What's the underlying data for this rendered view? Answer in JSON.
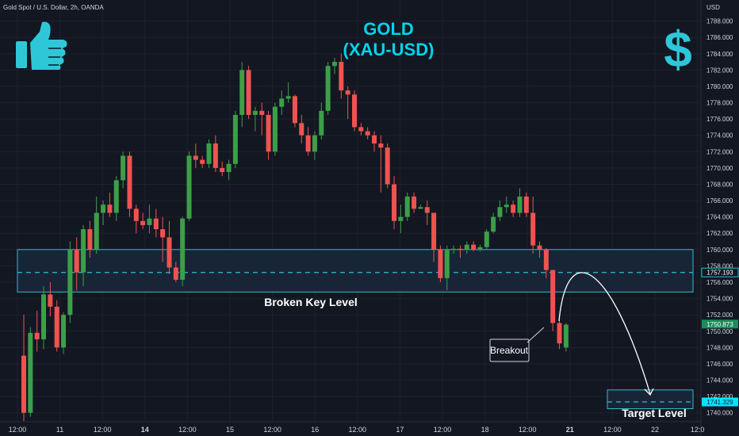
{
  "symbol_info": "Gold Spot / U.S. Dollar, 2h, OANDA",
  "currency": "USD",
  "chart_data": {
    "type": "candlestick",
    "title": "GOLD",
    "subtitle": "(XAU-USD)",
    "ylim": [
      1739,
      1790
    ],
    "y_ticks": [
      1740,
      1742,
      1744,
      1746,
      1748,
      1750,
      1752,
      1754,
      1756,
      1758,
      1760,
      1762,
      1764,
      1766,
      1768,
      1770,
      1772,
      1774,
      1776,
      1778,
      1780,
      1782,
      1784,
      1786,
      1788
    ],
    "y_tick_labels": [
      "1740.000",
      "1742.000",
      "1744.000",
      "1746.000",
      "1748.000",
      "1750.000",
      "1752.000",
      "1754.000",
      "1756.000",
      "1758.000",
      "1760.000",
      "1762.000",
      "1764.000",
      "1766.000",
      "1768.000",
      "1770.000",
      "1772.000",
      "1774.000",
      "1776.000",
      "1778.000",
      "1780.000",
      "1782.000",
      "1784.000",
      "1786.000",
      "1788.000"
    ],
    "x_ticks": [
      "12:00",
      "11",
      "12:00",
      "14",
      "12:00",
      "15",
      "12:00",
      "16",
      "12:00",
      "17",
      "12:00",
      "18",
      "12:00",
      "21",
      "12:00",
      "22",
      "12:0"
    ],
    "x_ticks_bold": [
      false,
      false,
      false,
      true,
      false,
      false,
      false,
      false,
      false,
      false,
      false,
      false,
      false,
      true,
      false,
      false,
      false
    ],
    "candles": [
      [
        1747.0,
        1752.0,
        1739.0,
        1740.0
      ],
      [
        1740.0,
        1750.5,
        1739.5,
        1749.8
      ],
      [
        1749.8,
        1752.5,
        1747.5,
        1749.0
      ],
      [
        1749.0,
        1755.5,
        1747.8,
        1754.5
      ],
      [
        1754.5,
        1756.0,
        1751.8,
        1753.0
      ],
      [
        1753.0,
        1753.8,
        1747.5,
        1748.0
      ],
      [
        1748.0,
        1752.3,
        1747.2,
        1752.0
      ],
      [
        1752.0,
        1761.0,
        1751.0,
        1760.0
      ],
      [
        1760.0,
        1761.5,
        1755.0,
        1757.2
      ],
      [
        1757.2,
        1763.0,
        1755.5,
        1762.5
      ],
      [
        1762.5,
        1763.5,
        1759.0,
        1760.0
      ],
      [
        1760.0,
        1766.5,
        1759.5,
        1764.5
      ],
      [
        1764.5,
        1766.0,
        1763.0,
        1765.5
      ],
      [
        1765.5,
        1767.0,
        1764.0,
        1764.5
      ],
      [
        1764.5,
        1769.0,
        1763.5,
        1768.5
      ],
      [
        1768.5,
        1772.0,
        1767.5,
        1771.5
      ],
      [
        1771.5,
        1772.0,
        1764.0,
        1765.0
      ],
      [
        1765.0,
        1765.5,
        1762.0,
        1763.5
      ],
      [
        1763.5,
        1764.5,
        1762.5,
        1763.0
      ],
      [
        1763.0,
        1765.5,
        1762.0,
        1763.8
      ],
      [
        1763.8,
        1765.0,
        1761.5,
        1762.5
      ],
      [
        1762.5,
        1764.0,
        1758.5,
        1761.5
      ],
      [
        1761.5,
        1763.5,
        1757.0,
        1757.8
      ],
      [
        1757.8,
        1758.5,
        1756.0,
        1756.3
      ],
      [
        1756.3,
        1764.0,
        1755.5,
        1763.8
      ],
      [
        1763.8,
        1772.0,
        1763.5,
        1771.5
      ],
      [
        1771.5,
        1773.0,
        1770.0,
        1771.0
      ],
      [
        1771.0,
        1771.5,
        1770.0,
        1770.5
      ],
      [
        1770.5,
        1773.5,
        1770.0,
        1773.0
      ],
      [
        1773.0,
        1774.0,
        1769.5,
        1770.0
      ],
      [
        1770.0,
        1770.8,
        1769.0,
        1769.5
      ],
      [
        1769.5,
        1771.0,
        1768.5,
        1770.5
      ],
      [
        1770.5,
        1777.0,
        1770.0,
        1776.5
      ],
      [
        1776.5,
        1783.0,
        1775.0,
        1782.0
      ],
      [
        1782.0,
        1782.5,
        1776.0,
        1776.5
      ],
      [
        1776.5,
        1777.5,
        1774.5,
        1777.0
      ],
      [
        1777.0,
        1778.0,
        1774.0,
        1776.5
      ],
      [
        1776.5,
        1777.0,
        1771.0,
        1772.0
      ],
      [
        1772.0,
        1778.0,
        1771.5,
        1777.5
      ],
      [
        1777.5,
        1779.5,
        1776.5,
        1778.5
      ],
      [
        1778.5,
        1780.5,
        1778.0,
        1778.8
      ],
      [
        1778.8,
        1779.0,
        1775.0,
        1775.5
      ],
      [
        1775.5,
        1776.5,
        1773.0,
        1774.0
      ],
      [
        1774.0,
        1775.0,
        1771.5,
        1772.0
      ],
      [
        1772.0,
        1774.5,
        1771.0,
        1774.0
      ],
      [
        1774.0,
        1778.0,
        1773.5,
        1777.0
      ],
      [
        1777.0,
        1783.0,
        1776.5,
        1782.5
      ],
      [
        1782.5,
        1783.5,
        1781.5,
        1783.0
      ],
      [
        1783.0,
        1784.0,
        1778.5,
        1779.5
      ],
      [
        1779.5,
        1780.0,
        1776.0,
        1779.0
      ],
      [
        1779.0,
        1779.5,
        1774.5,
        1775.0
      ],
      [
        1775.0,
        1775.5,
        1774.0,
        1774.5
      ],
      [
        1774.5,
        1775.0,
        1773.5,
        1774.0
      ],
      [
        1774.0,
        1774.5,
        1772.0,
        1773.0
      ],
      [
        1773.0,
        1774.0,
        1767.0,
        1772.5
      ],
      [
        1772.5,
        1773.0,
        1767.5,
        1768.0
      ],
      [
        1768.0,
        1769.0,
        1762.5,
        1763.5
      ],
      [
        1763.5,
        1765.5,
        1762.0,
        1764.0
      ],
      [
        1764.0,
        1767.0,
        1763.5,
        1766.5
      ],
      [
        1766.5,
        1767.0,
        1764.5,
        1765.0
      ],
      [
        1765.0,
        1765.5,
        1765.0,
        1765.2
      ],
      [
        1765.2,
        1766.0,
        1763.0,
        1764.5
      ],
      [
        1764.5,
        1764.5,
        1758.5,
        1760.0
      ],
      [
        1760.0,
        1760.5,
        1756.0,
        1756.5
      ],
      [
        1756.5,
        1760.5,
        1755.0,
        1760.0
      ],
      [
        1760.0,
        1760.5,
        1759.5,
        1760.1
      ],
      [
        1760.1,
        1760.5,
        1759.0,
        1760.0
      ],
      [
        1760.0,
        1761.0,
        1759.5,
        1760.6
      ],
      [
        1760.6,
        1761.0,
        1759.8,
        1760.0
      ],
      [
        1760.0,
        1760.6,
        1759.8,
        1760.3
      ],
      [
        1760.3,
        1762.5,
        1760.0,
        1762.2
      ],
      [
        1762.2,
        1764.5,
        1762.0,
        1764.0
      ],
      [
        1764.0,
        1766.0,
        1763.5,
        1765.2
      ],
      [
        1765.2,
        1766.5,
        1764.5,
        1765.5
      ],
      [
        1765.5,
        1766.0,
        1764.0,
        1764.5
      ],
      [
        1764.5,
        1767.5,
        1764.0,
        1766.5
      ],
      [
        1766.5,
        1767.0,
        1764.0,
        1764.5
      ],
      [
        1764.5,
        1766.5,
        1759.5,
        1760.5
      ],
      [
        1760.5,
        1761.0,
        1759.0,
        1760.0
      ],
      [
        1760.0,
        1760.2,
        1756.5,
        1757.5
      ],
      [
        1757.5,
        1757.5,
        1750.0,
        1751.0
      ],
      [
        1751.0,
        1751.5,
        1747.8,
        1748.5
      ],
      [
        1748.0,
        1751.0,
        1747.5,
        1750.8
      ]
    ],
    "key_level": {
      "label": "Broken Key Level",
      "upper": 1760.0,
      "lower": 1754.8,
      "line": 1757.193,
      "line_label": "1757.193"
    },
    "last_price": "1750.873",
    "last_price_value": 1750.873,
    "target": {
      "label": "Target Level",
      "upper": 1742.8,
      "lower": 1740.5,
      "line": 1741.329,
      "line_label": "1741.329"
    },
    "callout": "Breakout"
  },
  "colors": {
    "background": "#131722",
    "up": "#26a69a",
    "up_fill": "#3c9f48",
    "down": "#ef5350",
    "accent": "#00d4e8",
    "zone_fill": "#1c2a3a",
    "grid": "#1e222d",
    "price_badge": "#1e8c5a"
  },
  "icons": {
    "thumbs_up": "thumbs-up-icon",
    "dollar": "dollar-sign-icon",
    "dollar_glyph": "$"
  }
}
